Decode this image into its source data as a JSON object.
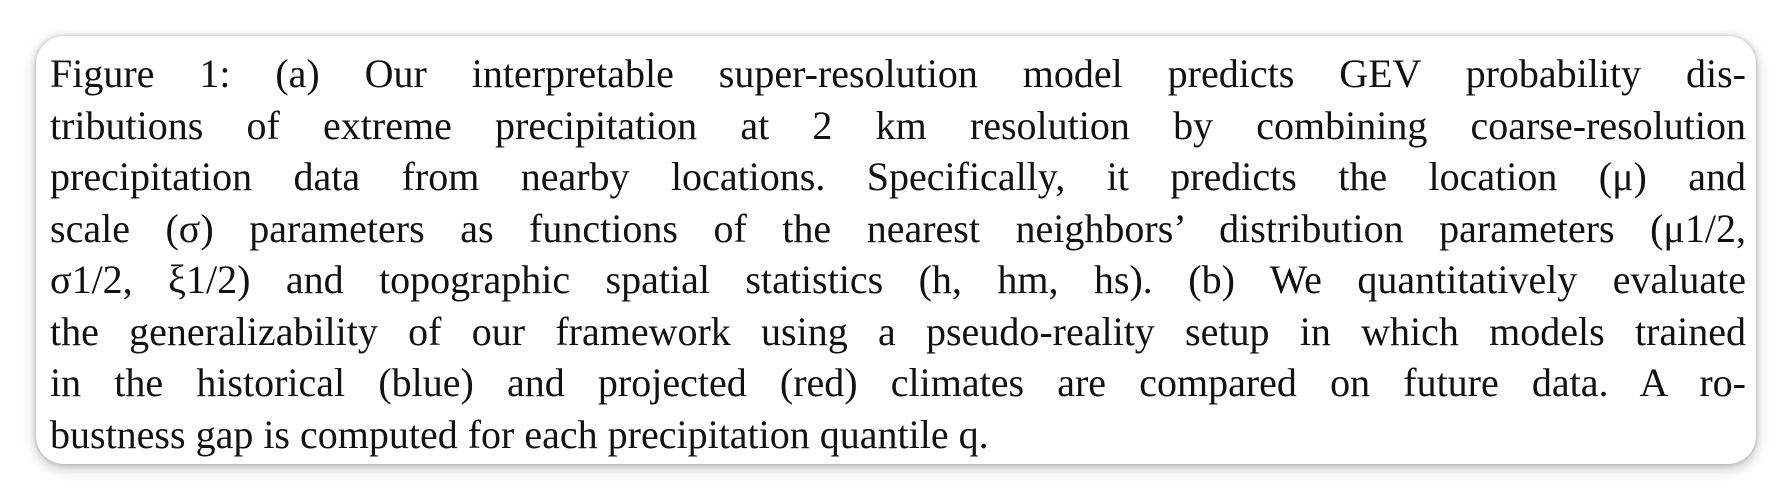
{
  "caption": {
    "lines": [
      "Figure  1: (a) Our interpretable super-resolution model predicts GEV probability dis-",
      "tributions of extreme precipitation at 2 km resolution by combining coarse-resolution",
      "precipitation data from nearby locations. Specifically, it predicts the location (μ) and",
      "scale (σ) parameters as functions of the nearest neighbors’ distribution parameters (μ1/2,",
      "σ1/2, ξ1/2) and topographic spatial statistics (h, hm, hs). (b) We quantitatively evaluate",
      "the generalizability of our framework using a pseudo-reality setup in which models trained",
      "in the historical (blue) and projected (red) climates are compared on future data. A ro-",
      "bustness gap is computed for each precipitation quantile q."
    ]
  }
}
